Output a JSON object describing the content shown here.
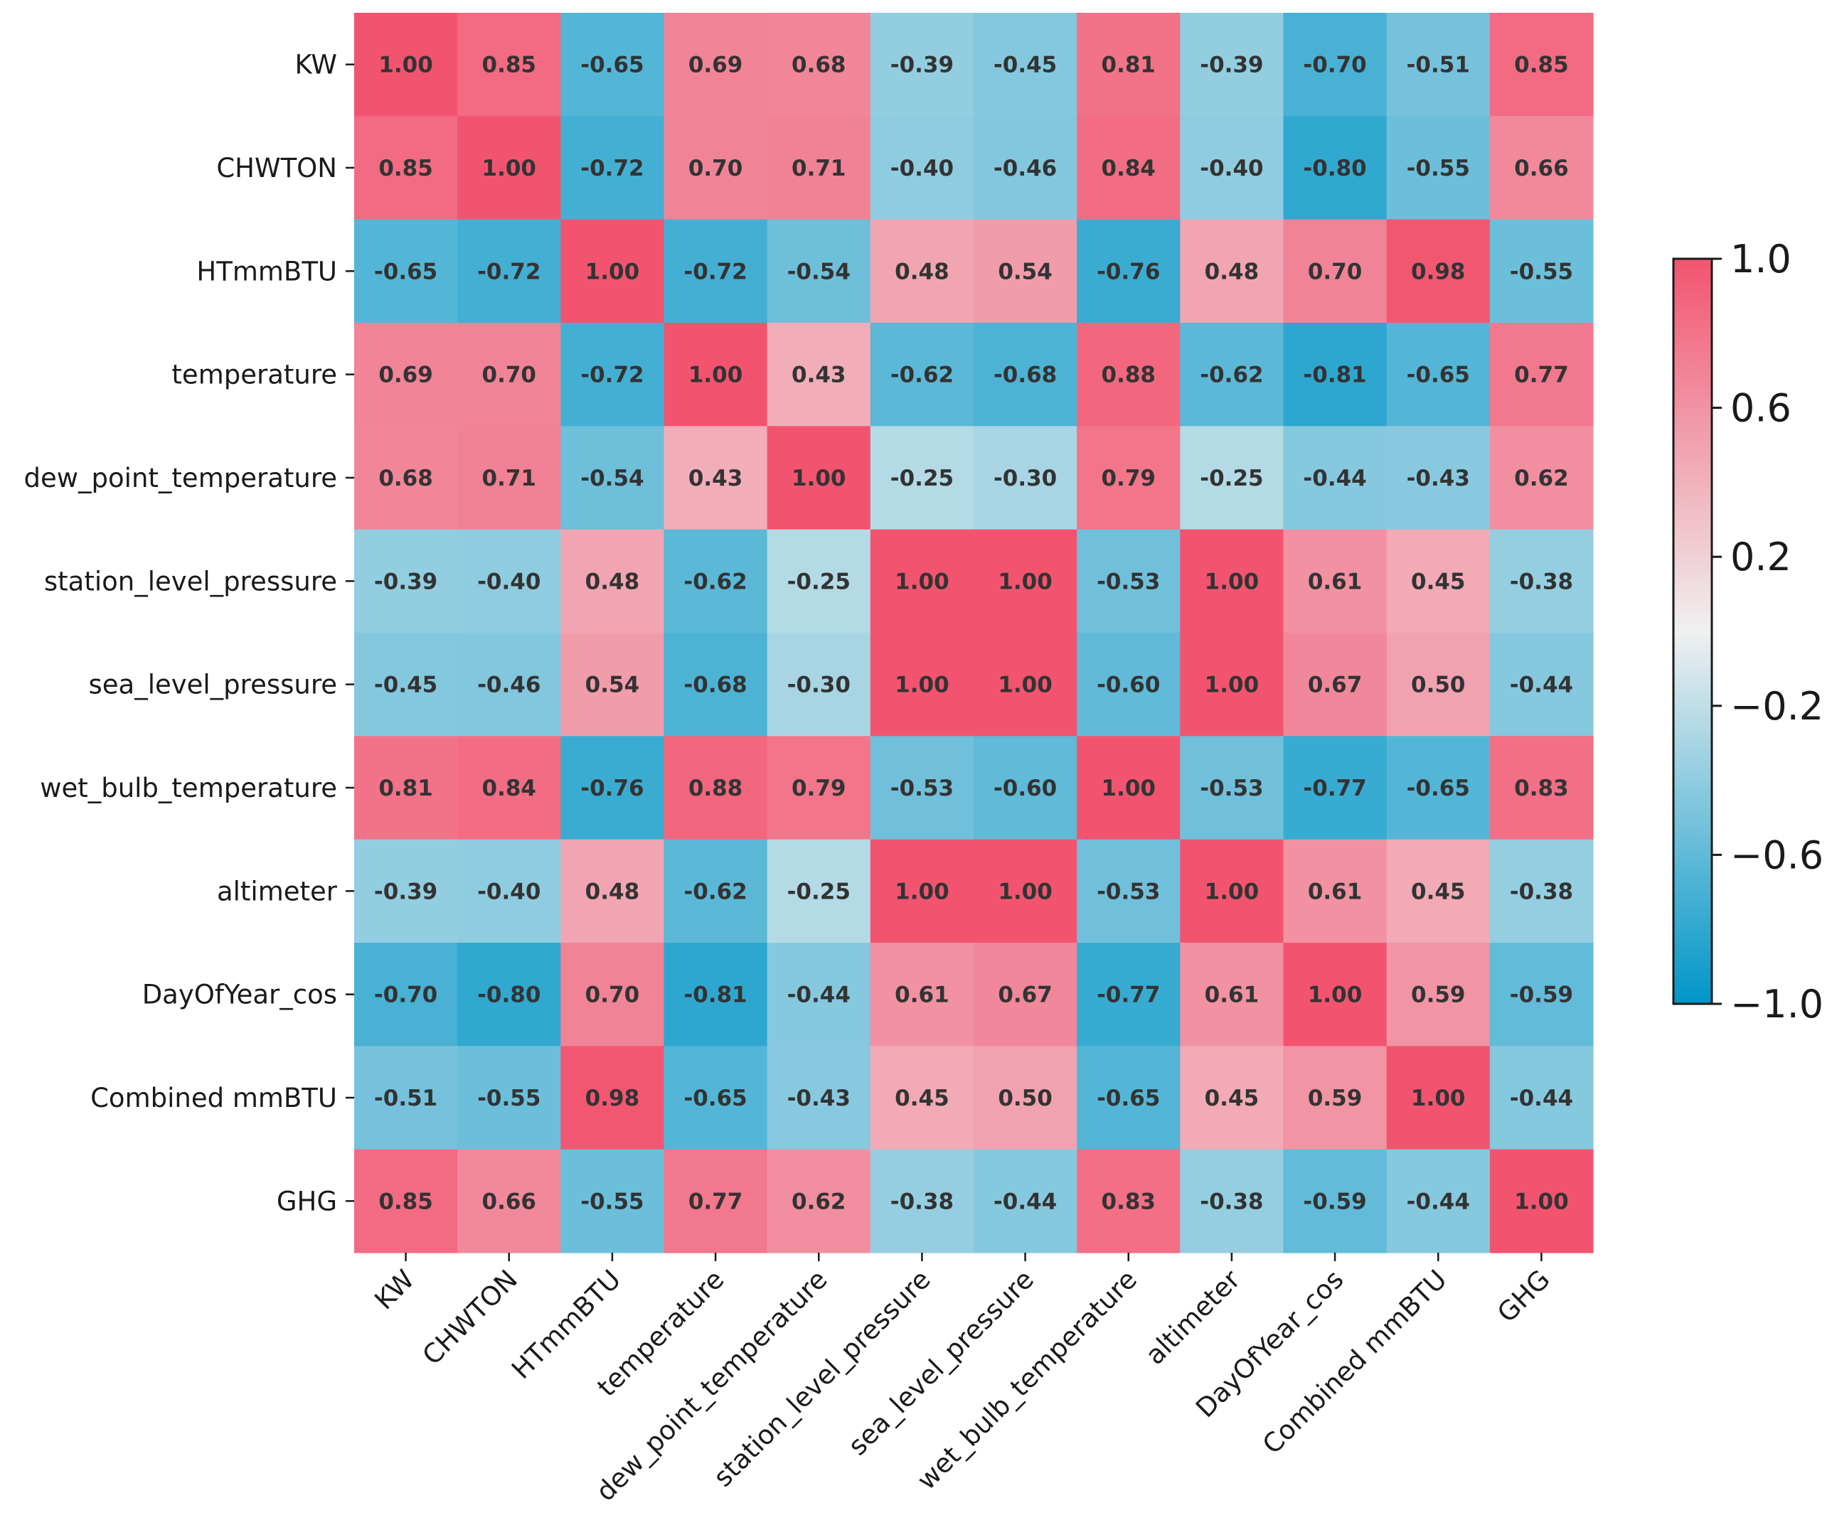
{
  "chart_data": {
    "type": "heatmap",
    "title": "",
    "xlabel": "",
    "ylabel": "",
    "variables": [
      "KW",
      "CHWTON",
      "HTmmBTU",
      "temperature",
      "dew_point_temperature",
      "station_level_pressure",
      "sea_level_pressure",
      "wet_bulb_temperature",
      "altimeter",
      "DayOfYear_cos",
      "Combined mmBTU",
      "GHG"
    ],
    "values": [
      [
        "1.00",
        "0.85",
        "-0.65",
        "0.69",
        "0.68",
        "-0.39",
        "-0.45",
        "0.81",
        "-0.39",
        "-0.70",
        "-0.51",
        "0.85"
      ],
      [
        "0.85",
        "1.00",
        "-0.72",
        "0.70",
        "0.71",
        "-0.40",
        "-0.46",
        "0.84",
        "-0.40",
        "-0.80",
        "-0.55",
        "0.66"
      ],
      [
        "-0.65",
        "-0.72",
        "1.00",
        "-0.72",
        "-0.54",
        "0.48",
        "0.54",
        "-0.76",
        "0.48",
        "0.70",
        "0.98",
        "-0.55"
      ],
      [
        "0.69",
        "0.70",
        "-0.72",
        "1.00",
        "0.43",
        "-0.62",
        "-0.68",
        "0.88",
        "-0.62",
        "-0.81",
        "-0.65",
        "0.77"
      ],
      [
        "0.68",
        "0.71",
        "-0.54",
        "0.43",
        "1.00",
        "-0.25",
        "-0.30",
        "0.79",
        "-0.25",
        "-0.44",
        "-0.43",
        "0.62"
      ],
      [
        "-0.39",
        "-0.40",
        "0.48",
        "-0.62",
        "-0.25",
        "1.00",
        "1.00",
        "-0.53",
        "1.00",
        "0.61",
        "0.45",
        "-0.38"
      ],
      [
        "-0.45",
        "-0.46",
        "0.54",
        "-0.68",
        "-0.30",
        "1.00",
        "1.00",
        "-0.60",
        "1.00",
        "0.67",
        "0.50",
        "-0.44"
      ],
      [
        "0.81",
        "0.84",
        "-0.76",
        "0.88",
        "0.79",
        "-0.53",
        "-0.60",
        "1.00",
        "-0.53",
        "-0.77",
        "-0.65",
        "0.83"
      ],
      [
        "-0.39",
        "-0.40",
        "0.48",
        "-0.62",
        "-0.25",
        "1.00",
        "1.00",
        "-0.53",
        "1.00",
        "0.61",
        "0.45",
        "-0.38"
      ],
      [
        "-0.70",
        "-0.80",
        "0.70",
        "-0.81",
        "-0.44",
        "0.61",
        "0.67",
        "-0.77",
        "0.61",
        "1.00",
        "0.59",
        "-0.59"
      ],
      [
        "-0.51",
        "-0.55",
        "0.98",
        "-0.65",
        "-0.43",
        "0.45",
        "0.50",
        "-0.65",
        "0.45",
        "0.59",
        "1.00",
        "-0.44"
      ],
      [
        "0.85",
        "0.66",
        "-0.55",
        "0.77",
        "0.62",
        "-0.38",
        "-0.44",
        "0.83",
        "-0.38",
        "-0.59",
        "-0.44",
        "1.00"
      ]
    ],
    "colorbar": {
      "min": -1.0,
      "max": 1.0,
      "ticks": [
        {
          "value": 1.0,
          "label": "1.0"
        },
        {
          "value": 0.6,
          "label": "0.6"
        },
        {
          "value": 0.2,
          "label": "0.2"
        },
        {
          "value": -0.2,
          "label": "−0.2"
        },
        {
          "value": -0.6,
          "label": "−0.6"
        },
        {
          "value": -1.0,
          "label": "−1.0"
        }
      ]
    },
    "colors": {
      "negative": "#0096c8",
      "center": "#f0f0f0",
      "positive": "#f2546f"
    }
  }
}
